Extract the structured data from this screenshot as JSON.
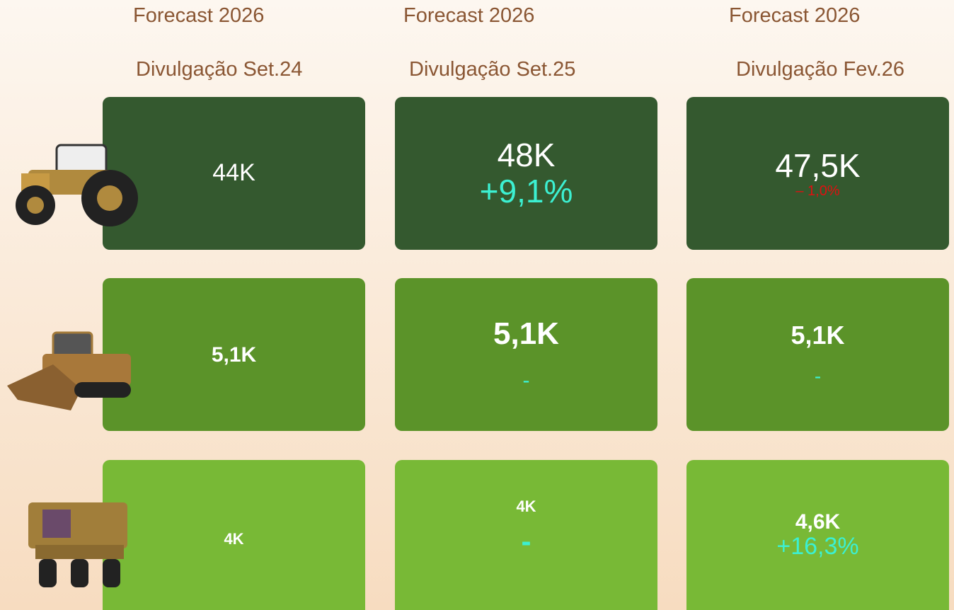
{
  "columns": [
    {
      "title": "Forecast 2026",
      "subtitle": "Divulgação Set.24"
    },
    {
      "title": "Forecast 2026",
      "subtitle": "Divulgação Set.25"
    },
    {
      "title": "Forecast 2026",
      "subtitle": "Divulgação Fev.26"
    }
  ],
  "rows": [
    {
      "cells": [
        {
          "value": "44K"
        },
        {
          "value": "48K",
          "change": "+9,1%"
        },
        {
          "value": "47,5K",
          "change": "– 1,0%"
        }
      ]
    },
    {
      "cells": [
        {
          "value": "5,1K"
        },
        {
          "value": "5,1K",
          "change": "-"
        },
        {
          "value": "5,1K",
          "change": "-"
        }
      ]
    },
    {
      "cells": [
        {
          "value": "4K"
        },
        {
          "value": "4K",
          "change": "-"
        },
        {
          "value": "4,6K",
          "change": "+16,3%"
        }
      ]
    }
  ]
}
